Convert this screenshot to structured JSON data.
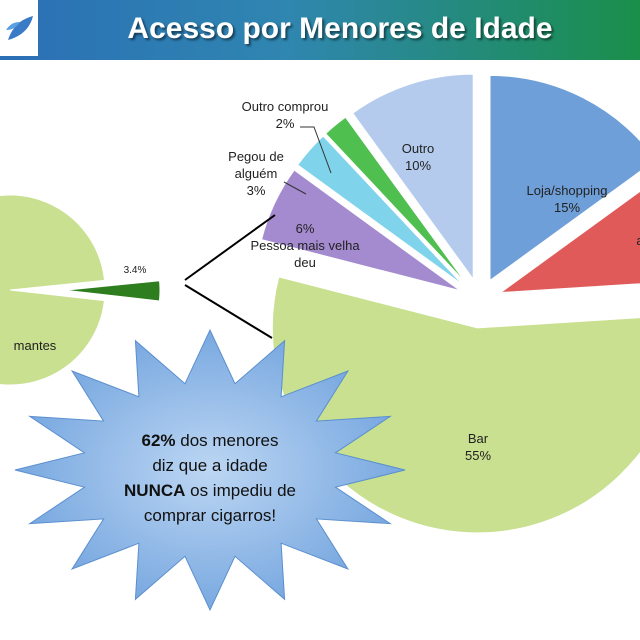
{
  "header": {
    "title": "Acesso por Menores de Idade"
  },
  "chart_data": [
    {
      "type": "pie",
      "categories": [
        "mantes",
        null
      ],
      "values": [
        96.6,
        3.4
      ],
      "value_labels": [
        null,
        "3.4%"
      ],
      "colors": [
        "#c8e08f",
        "#2e7d1e"
      ]
    },
    {
      "type": "pie",
      "categories": [
        "Loja/shopping",
        "a",
        "Bar",
        "Pessoa mais velha deu",
        "Pegou de alguém",
        "Outro comprou",
        "Outro"
      ],
      "values": [
        15,
        9,
        55,
        6,
        3,
        2,
        10
      ],
      "value_labels": [
        "15%",
        null,
        "55%",
        "6%",
        "3%",
        "2%",
        "10%"
      ],
      "colors": [
        "#6f9fd8",
        "#e05a5a",
        "#c8e08f",
        "#a48bd0",
        "#7fd3ea",
        "#4fbf4f",
        "#b4cbee"
      ]
    }
  ],
  "callout": {
    "lines": [
      [
        {
          "text": "62%",
          "bold": true
        },
        {
          "text": " dos menores"
        }
      ],
      [
        {
          "text": "diz que a idade"
        }
      ],
      [
        {
          "text": "NUNCA",
          "bold": true
        },
        {
          "text": " os impediu de"
        }
      ],
      [
        {
          "text": "comprar cigarros!"
        }
      ]
    ]
  }
}
